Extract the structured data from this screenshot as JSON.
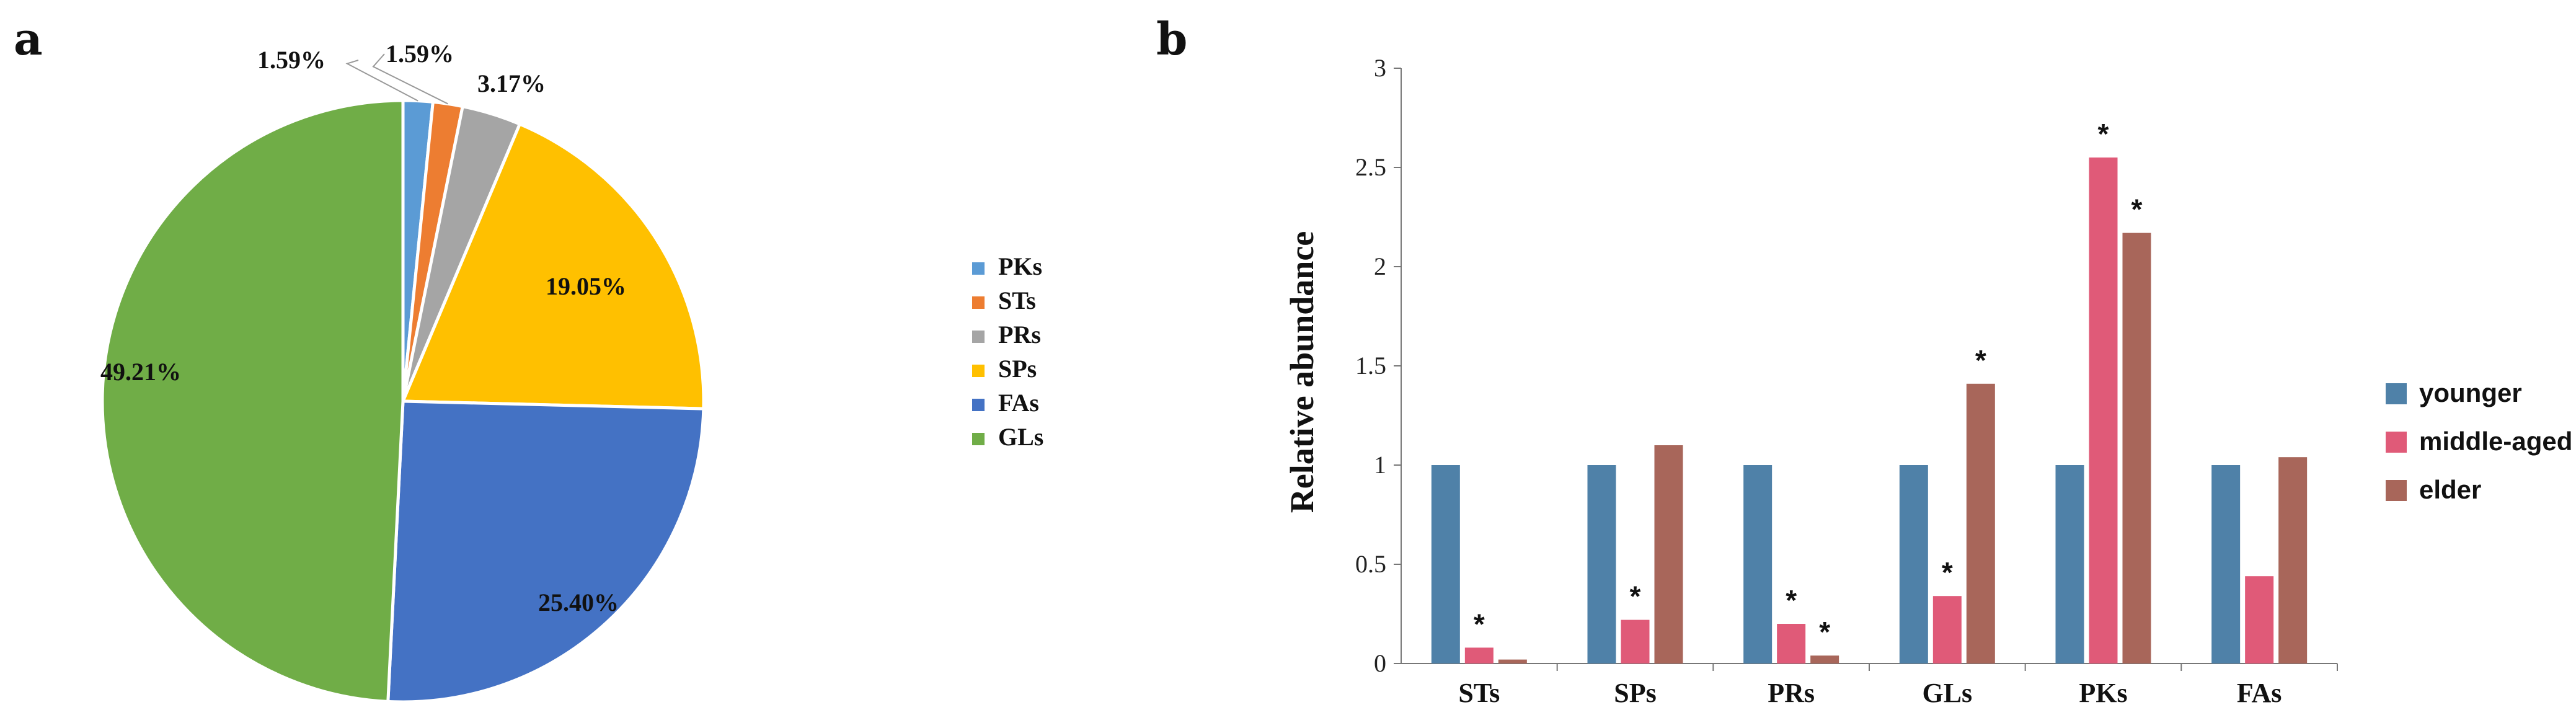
{
  "colors": {
    "PKs": "#5b9bd5",
    "STs": "#ed7d31",
    "PRs": "#a5a5a5",
    "SPs": "#ffc000",
    "FAs": "#4472c4",
    "GLs": "#70ad47",
    "younger": "#4f81a8",
    "middle_aged": "#e05a78",
    "elder": "#a8665a"
  },
  "chart_data": [
    {
      "panel": "a",
      "type": "pie",
      "slices": [
        {
          "name": "PKs",
          "value": 1.59,
          "label": "1.59%"
        },
        {
          "name": "STs",
          "value": 1.59,
          "label": "1.59%"
        },
        {
          "name": "PRs",
          "value": 3.17,
          "label": "3.17%"
        },
        {
          "name": "SPs",
          "value": 19.05,
          "label": "19.05%"
        },
        {
          "name": "FAs",
          "value": 25.4,
          "label": "25.40%"
        },
        {
          "name": "GLs",
          "value": 49.21,
          "label": "49.21%"
        }
      ],
      "legend": [
        "PKs",
        "STs",
        "PRs",
        "SPs",
        "FAs",
        "GLs"
      ],
      "legend_placement": "right"
    },
    {
      "panel": "b",
      "type": "bar",
      "categories": [
        "STs",
        "SPs",
        "PRs",
        "GLs",
        "PKs",
        "FAs"
      ],
      "series": [
        {
          "name": "younger",
          "values": [
            1,
            1,
            1,
            1,
            1,
            1
          ]
        },
        {
          "name": "middle-aged",
          "values": [
            0.08,
            0.22,
            0.2,
            0.34,
            2.55,
            0.44
          ]
        },
        {
          "name": "elder",
          "values": [
            0.02,
            1.1,
            0.04,
            1.41,
            2.17,
            1.04
          ]
        }
      ],
      "significance": [
        {
          "category": "STs",
          "series": "middle-aged",
          "mark": "*"
        },
        {
          "category": "SPs",
          "series": "middle-aged",
          "mark": "*"
        },
        {
          "category": "PRs",
          "series": "middle-aged",
          "mark": "*"
        },
        {
          "category": "PRs",
          "series": "elder",
          "mark": "*"
        },
        {
          "category": "GLs",
          "series": "middle-aged",
          "mark": "*"
        },
        {
          "category": "GLs",
          "series": "elder",
          "mark": "*"
        },
        {
          "category": "PKs",
          "series": "middle-aged",
          "mark": "*"
        },
        {
          "category": "PKs",
          "series": "elder",
          "mark": "*"
        }
      ],
      "ylabel": "Relative abundance",
      "ylim": [
        0,
        3
      ],
      "yticks": [
        "0",
        "0.5",
        "1",
        "1.5",
        "2",
        "2.5",
        "3"
      ],
      "legend_placement": "right",
      "grid": false
    }
  ]
}
